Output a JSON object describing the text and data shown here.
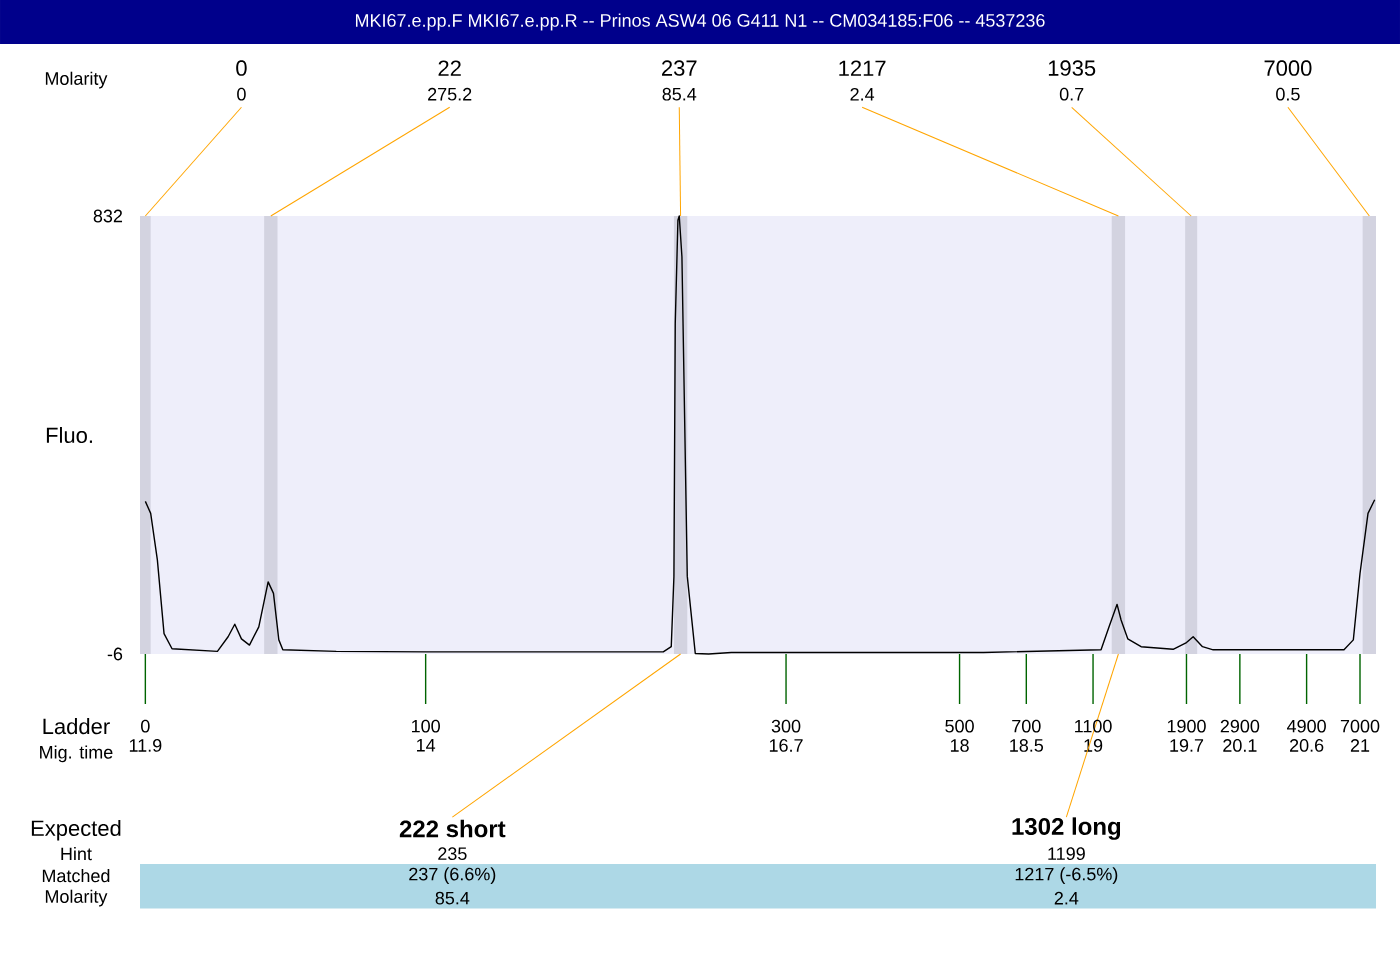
{
  "chart_data": {
    "type": "line",
    "title": "MKI67.e.pp.F  MKI67.e.pp.R -- Prinos ASW4 06 G411 N1 -- CM034185:F06 -- 4537236",
    "ylabel": "Fluo.",
    "xlim": [
      11.86,
      21.12
    ],
    "ylim": [
      -6,
      832
    ],
    "xticks": [
      11.9,
      14,
      16.7,
      18,
      18.5,
      19,
      19.7,
      20.1,
      20.6,
      21
    ],
    "yticks": [
      -6,
      832
    ],
    "grid": false,
    "marker": "none",
    "line_style": "solid",
    "x": [
      11.9,
      11.94,
      11.99,
      12.04,
      12.1,
      12.44,
      12.52,
      12.57,
      12.62,
      12.68,
      12.75,
      12.82,
      12.86,
      12.9,
      12.93,
      13.33,
      14.01,
      15.78,
      15.84,
      15.86,
      15.87,
      15.89,
      15.9,
      15.92,
      15.96,
      16.02,
      16.12,
      16.29,
      18.18,
      19.06,
      19.12,
      19.18,
      19.21,
      19.26,
      19.36,
      19.6,
      19.7,
      19.75,
      19.82,
      19.9,
      20.88,
      20.95,
      21.0,
      21.06,
      21.11
    ],
    "series": [
      {
        "color": "#000000",
        "values": [
          286,
          263,
          174,
          33,
          4,
          -1,
          27,
          51,
          23,
          11,
          46,
          132,
          110,
          21,
          2,
          -1,
          -2,
          -2,
          8,
          142,
          627,
          824,
          832,
          754,
          143,
          -5,
          -6,
          -3,
          -3,
          2,
          46,
          89,
          59,
          23,
          8,
          3,
          16,
          27,
          8,
          2,
          2,
          21,
          148,
          263,
          289
        ]
      }
    ],
    "bands": [
      {
        "axis": "x",
        "from": 11.86,
        "to": 11.94,
        "color": "#d3d3e0"
      },
      {
        "axis": "x",
        "from": 12.79,
        "to": 12.89,
        "color": "#d3d3e0"
      },
      {
        "axis": "x",
        "from": 15.86,
        "to": 15.96,
        "color": "#d3d3e0"
      },
      {
        "axis": "x",
        "from": 19.14,
        "to": 19.24,
        "color": "#d3d3e0"
      },
      {
        "axis": "x",
        "from": 19.69,
        "to": 19.78,
        "color": "#d3d3e0"
      },
      {
        "axis": "x",
        "from": 21.02,
        "to": 21.12,
        "color": "#d3d3e0"
      }
    ],
    "annotations": [
      "0",
      "22",
      "237",
      "1217",
      "1935",
      "7000",
      {
        "text": "0",
        "x": 11.9,
        "y": 832
      },
      {
        "text": "275.2",
        "x": 12.84,
        "y": 832
      },
      {
        "text": "85.4",
        "x": 15.91,
        "y": 832
      },
      {
        "text": "2.4",
        "x": 19.19,
        "y": 832
      },
      {
        "text": "0.7",
        "x": 19.735,
        "y": 832
      },
      {
        "text": "0.5",
        "x": 21.07,
        "y": 832
      },
      "Molarity",
      "Ladder",
      "Mig. time",
      "0",
      "100",
      "300",
      "500",
      "700",
      "1100",
      "1900",
      "2900",
      "4900",
      "7000",
      "Expected",
      "Hint",
      "Matched",
      "Molarity",
      {
        "text": "222 short",
        "x": 15.91,
        "y": -6
      },
      {
        "text": "1302 long",
        "x": 19.19,
        "y": -6
      },
      "235",
      "1199",
      "237 (6.6%)",
      "1217 (-6.5%)",
      "85.4",
      "2.4"
    ]
  }
}
